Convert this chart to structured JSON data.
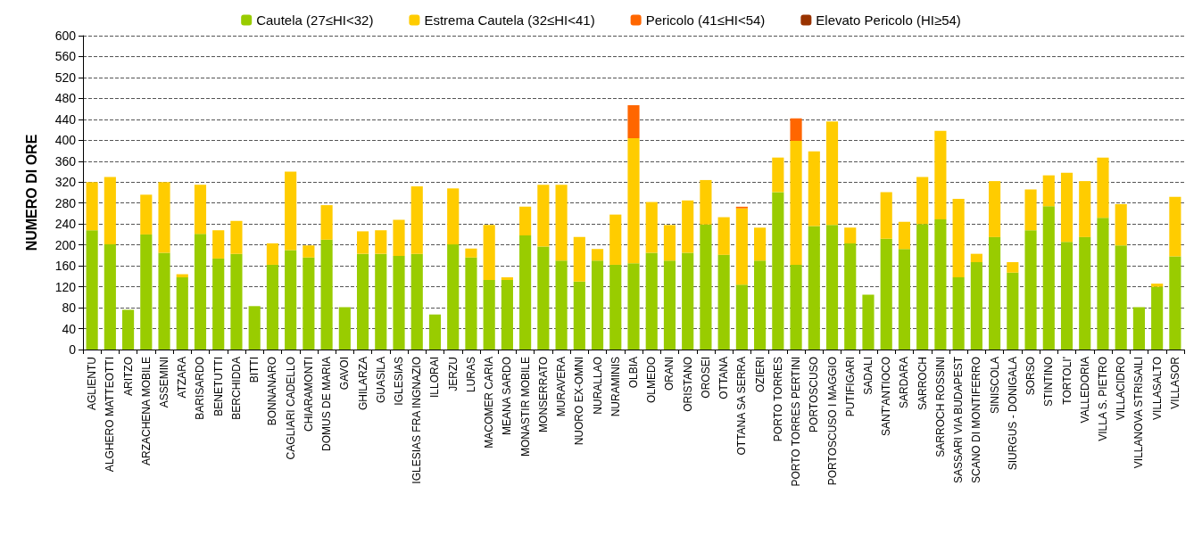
{
  "chart_data": {
    "type": "bar",
    "stacked": true,
    "ylabel": "NUMERO DI ORE",
    "ylim": [
      0,
      600
    ],
    "yticks": [
      0,
      40,
      80,
      120,
      160,
      200,
      240,
      280,
      320,
      360,
      400,
      440,
      480,
      520,
      560,
      600
    ],
    "grid": "y",
    "legend": "top",
    "categories": [
      "AGLIENTU",
      "ALGHERO MATTEOTTI",
      "ARITZO",
      "ARZACHENA MOBILE",
      "ASSEMINI",
      "ATZARA",
      "BARISARDO",
      "BENETUTTI",
      "BERCHIDDA",
      "BITTI",
      "BONNANARO",
      "CAGLIARI CADELLO",
      "CHIARAMONTI",
      "DOMUS DE MARIA",
      "GAVOI",
      "GHILARZA",
      "GUASILA",
      "IGLESIAS",
      "IGLESIAS FRA INGNAZIO",
      "ILLORAI",
      "JERZU",
      "LURAS",
      "MACOMER CARIA",
      "MEANA SARDO",
      "MONASTIR MOBILE",
      "MONSERRATO",
      "MURAVERA",
      "NUORO EX-OMNI",
      "NURALLAO",
      "NURAMINIS",
      "OLBIA",
      "OLMEDO",
      "ORANI",
      "ORISTANO",
      "OROSEI",
      "OTTANA",
      "OTTANA SA SERRA",
      "OZIERI",
      "PORTO TORRES",
      "PORTO TORRES PERTINI",
      "PORTOSCUSO",
      "PORTOSCUSO I MAGGIO",
      "PUTIFIGARI",
      "SADALI",
      "SANT'ANTIOCO",
      "SARDARA",
      "SARROCH",
      "SARROCH ROSSINI",
      "SASSARI VIA BUDAPEST",
      "SCANO DI MONTIFERRO",
      "SINISCOLA",
      "SIURGUS - DONIGALA",
      "SORSO",
      "STINTINO",
      "TORTOLI'",
      "VALLEDORIA",
      "VILLA S. PIETRO",
      "VILLACIDRO",
      "VILLANOVA STRISAILI",
      "VILLASALTO",
      "VILLASOR"
    ],
    "series": [
      {
        "name": "Cautela (27≤HI<32)",
        "color": "#99cc00",
        "values": [
          228,
          201,
          76,
          220,
          185,
          138,
          221,
          174,
          183,
          83,
          162,
          190,
          176,
          210,
          81,
          183,
          183,
          179,
          183,
          67,
          201,
          176,
          133,
          133,
          218,
          197,
          170,
          130,
          170,
          162,
          165,
          185,
          170,
          185,
          239,
          181,
          124,
          170,
          301,
          162,
          236,
          238,
          203,
          105,
          212,
          192,
          240,
          249,
          138,
          167,
          215,
          147,
          228,
          274,
          206,
          215,
          252,
          199,
          81,
          120,
          178
        ]
      },
      {
        "name": "Estrema Cautela (32≤HI<41)",
        "color": "#ffcc00",
        "values": [
          92,
          129,
          0,
          76,
          135,
          6,
          94,
          54,
          63,
          0,
          41,
          150,
          23,
          66,
          0,
          43,
          45,
          69,
          129,
          0,
          107,
          17,
          105,
          5,
          55,
          118,
          145,
          85,
          22,
          96,
          239,
          97,
          68,
          100,
          85,
          72,
          146,
          63,
          66,
          237,
          143,
          198,
          30,
          0,
          89,
          52,
          90,
          169,
          150,
          16,
          107,
          20,
          78,
          59,
          132,
          107,
          115,
          79,
          0,
          6,
          114
        ]
      },
      {
        "name": "Pericolo (41≤HI<54)",
        "color": "#ff6600",
        "values": [
          0,
          0,
          0,
          0,
          0,
          0,
          0,
          0,
          0,
          0,
          0,
          0,
          0,
          0,
          0,
          0,
          0,
          0,
          0,
          0,
          0,
          0,
          0,
          0,
          0,
          0,
          0,
          0,
          0,
          0,
          63,
          0,
          0,
          0,
          0,
          0,
          3,
          0,
          0,
          43,
          0,
          0,
          0,
          0,
          0,
          0,
          0,
          0,
          0,
          0,
          0,
          0,
          0,
          0,
          0,
          0,
          0,
          0,
          0,
          0,
          0
        ]
      },
      {
        "name": "Elevato Pericolo (HI≥54)",
        "color": "#993300",
        "values": [
          0,
          0,
          0,
          0,
          0,
          0,
          0,
          0,
          0,
          0,
          0,
          0,
          0,
          0,
          0,
          0,
          0,
          0,
          0,
          0,
          0,
          0,
          0,
          0,
          0,
          0,
          0,
          0,
          0,
          0,
          0,
          0,
          0,
          0,
          0,
          0,
          0,
          0,
          0,
          0,
          0,
          0,
          0,
          0,
          0,
          0,
          0,
          0,
          0,
          0,
          0,
          0,
          0,
          0,
          0,
          0,
          0,
          0,
          0,
          0,
          0
        ]
      }
    ]
  }
}
